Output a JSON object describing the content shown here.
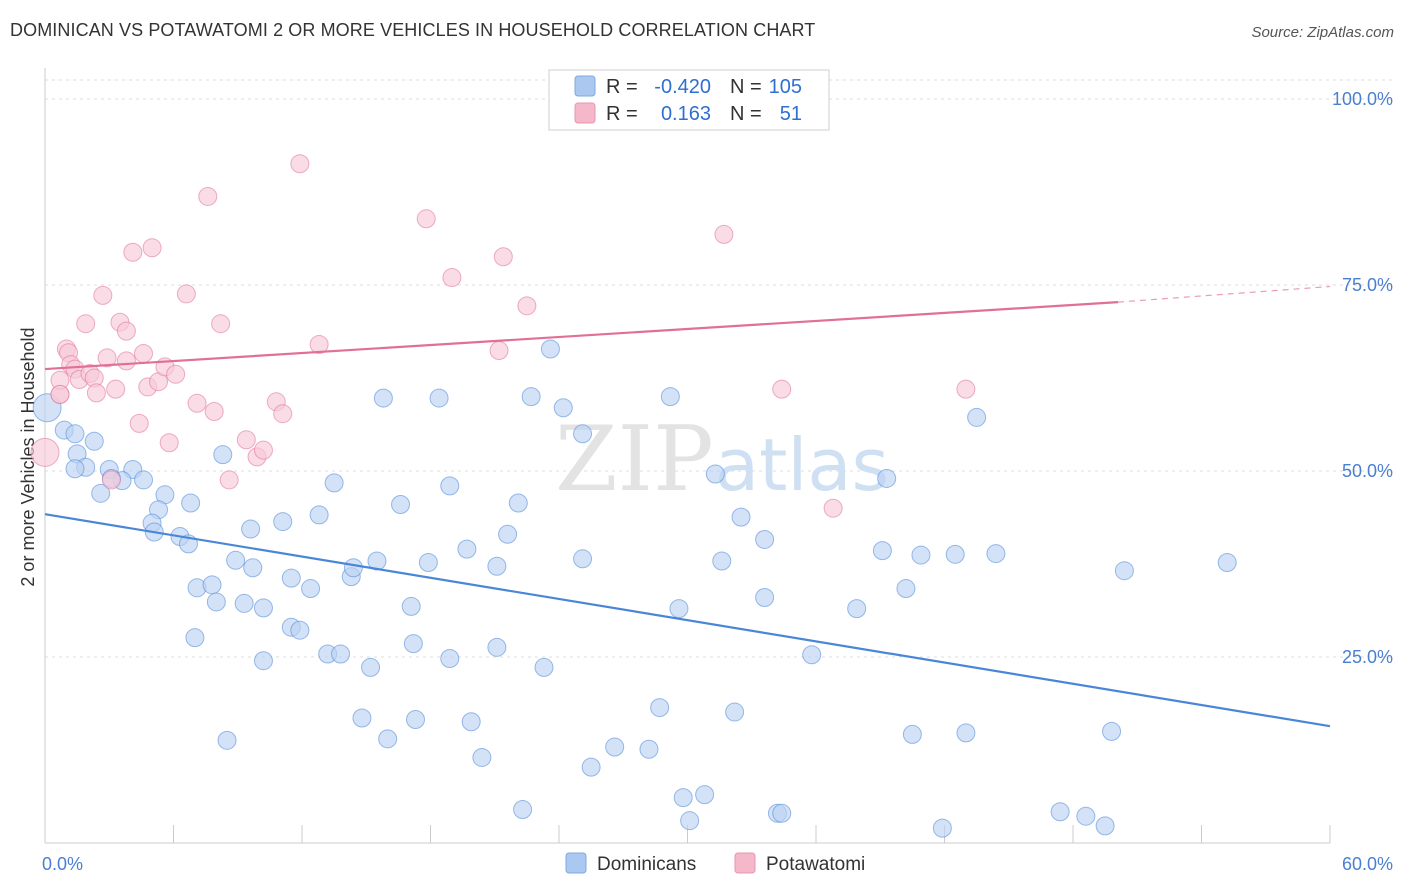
{
  "title": "DOMINICAN VS POTAWATOMI 2 OR MORE VEHICLES IN HOUSEHOLD CORRELATION CHART",
  "source": "Source: ZipAtlas.com",
  "watermark": {
    "part1": "ZIP",
    "part2": "atlas"
  },
  "legend": {
    "r_label": "R =",
    "n_label": "N =",
    "rows": [
      {
        "r": "-0.420",
        "n": "105",
        "color": "#aac8f0"
      },
      {
        "r": "0.163",
        "n": "51",
        "color": "#f5b8cb"
      }
    ]
  },
  "bottom_legend": [
    {
      "label": "Dominicans",
      "color": "#aac8f0"
    },
    {
      "label": "Potawatomi",
      "color": "#f5b8cb"
    }
  ],
  "chart_data": {
    "type": "scatter",
    "title": "DOMINICAN VS POTAWATOMI 2 OR MORE VEHICLES IN HOUSEHOLD CORRELATION CHART",
    "xlabel": "",
    "ylabel": "2 or more Vehicles in Household",
    "xlim": [
      0,
      60
    ],
    "ylim": [
      0,
      100
    ],
    "x_tick_labels": [
      "0.0%",
      "60.0%"
    ],
    "y_tick_labels": [
      "100.0%",
      "75.0%",
      "50.0%",
      "25.0%"
    ],
    "y_ticks": [
      100,
      75,
      50,
      25
    ],
    "grid": true,
    "series": [
      {
        "name": "Dominicans",
        "color": "#4a86d8",
        "fill": "#bcd3f3",
        "trend": {
          "x": [
            0,
            60
          ],
          "y": [
            44.2,
            15.7
          ]
        },
        "points": [
          [
            0.1,
            58.5
          ],
          [
            0.9,
            55.5
          ],
          [
            1.4,
            55.0
          ],
          [
            2.3,
            54.0
          ],
          [
            1.5,
            52.3
          ],
          [
            1.9,
            50.5
          ],
          [
            3.0,
            50.2
          ],
          [
            4.1,
            50.2
          ],
          [
            3.6,
            48.7
          ],
          [
            2.6,
            47.0
          ],
          [
            5.6,
            46.8
          ],
          [
            5.3,
            44.8
          ],
          [
            6.8,
            45.7
          ],
          [
            5.0,
            43.0
          ],
          [
            5.1,
            41.8
          ],
          [
            6.3,
            41.2
          ],
          [
            6.7,
            40.2
          ],
          [
            8.3,
            52.2
          ],
          [
            8.9,
            38.0
          ],
          [
            9.6,
            42.2
          ],
          [
            9.7,
            37.0
          ],
          [
            7.1,
            34.3
          ],
          [
            7.8,
            34.7
          ],
          [
            8.0,
            32.4
          ],
          [
            9.3,
            32.2
          ],
          [
            10.2,
            31.6
          ],
          [
            11.1,
            43.2
          ],
          [
            11.5,
            35.6
          ],
          [
            12.4,
            34.2
          ],
          [
            12.8,
            44.1
          ],
          [
            13.5,
            48.4
          ],
          [
            14.3,
            35.8
          ],
          [
            14.4,
            37.0
          ],
          [
            15.5,
            37.9
          ],
          [
            15.8,
            59.8
          ],
          [
            16.6,
            45.5
          ],
          [
            17.1,
            31.8
          ],
          [
            17.9,
            37.7
          ],
          [
            18.4,
            59.8
          ],
          [
            18.9,
            48.0
          ],
          [
            19.7,
            39.5
          ],
          [
            21.1,
            37.2
          ],
          [
            21.6,
            41.5
          ],
          [
            22.1,
            45.7
          ],
          [
            22.7,
            60.0
          ],
          [
            23.6,
            66.4
          ],
          [
            24.2,
            58.5
          ],
          [
            25.1,
            55.0
          ],
          [
            25.1,
            38.2
          ],
          [
            29.6,
            31.5
          ],
          [
            29.2,
            60.0
          ],
          [
            31.3,
            49.6
          ],
          [
            31.6,
            37.9
          ],
          [
            32.5,
            43.8
          ],
          [
            33.6,
            40.8
          ],
          [
            33.6,
            33.0
          ],
          [
            35.8,
            25.3
          ],
          [
            37.9,
            31.5
          ],
          [
            39.3,
            49.0
          ],
          [
            39.1,
            39.3
          ],
          [
            40.2,
            34.2
          ],
          [
            40.9,
            38.7
          ],
          [
            42.5,
            38.8
          ],
          [
            43.5,
            57.2
          ],
          [
            44.4,
            38.9
          ],
          [
            7.0,
            27.6
          ],
          [
            10.2,
            24.5
          ],
          [
            11.5,
            29.0
          ],
          [
            11.9,
            28.6
          ],
          [
            13.2,
            25.4
          ],
          [
            13.8,
            25.4
          ],
          [
            15.2,
            23.6
          ],
          [
            14.8,
            16.8
          ],
          [
            16.0,
            14.0
          ],
          [
            17.3,
            16.6
          ],
          [
            17.2,
            26.8
          ],
          [
            18.9,
            24.8
          ],
          [
            19.9,
            16.3
          ],
          [
            20.4,
            11.5
          ],
          [
            21.1,
            26.3
          ],
          [
            22.3,
            4.5
          ],
          [
            23.3,
            23.6
          ],
          [
            25.5,
            10.2
          ],
          [
            26.6,
            12.9
          ],
          [
            28.2,
            12.6
          ],
          [
            28.7,
            18.2
          ],
          [
            29.8,
            6.1
          ],
          [
            30.1,
            3.0
          ],
          [
            30.8,
            6.5
          ],
          [
            32.2,
            17.6
          ],
          [
            34.2,
            4.0
          ],
          [
            34.4,
            4.0
          ],
          [
            40.5,
            14.6
          ],
          [
            41.9,
            2.0
          ],
          [
            43.0,
            14.8
          ],
          [
            47.4,
            4.2
          ],
          [
            48.6,
            3.6
          ],
          [
            49.8,
            15.0
          ],
          [
            49.5,
            2.3
          ],
          [
            50.4,
            36.6
          ],
          [
            55.2,
            37.7
          ],
          [
            8.5,
            13.8
          ],
          [
            1.4,
            50.3
          ],
          [
            4.6,
            48.8
          ],
          [
            3.1,
            49.0
          ]
        ]
      },
      {
        "name": "Potawatomi",
        "color": "#e07098",
        "fill": "#f8cad9",
        "trend": {
          "x": [
            0,
            50.1
          ],
          "y": [
            63.7,
            72.7
          ]
        },
        "trend_dashed": {
          "x": [
            50.1,
            60
          ],
          "y": [
            72.7,
            74.8
          ]
        },
        "points": [
          [
            0.0,
            52.5
          ],
          [
            0.7,
            60.3
          ],
          [
            0.7,
            62.2
          ],
          [
            1.0,
            66.4
          ],
          [
            1.1,
            65.9
          ],
          [
            1.2,
            64.3
          ],
          [
            1.4,
            63.7
          ],
          [
            1.6,
            62.3
          ],
          [
            1.9,
            69.8
          ],
          [
            2.1,
            63.1
          ],
          [
            2.3,
            62.5
          ],
          [
            2.4,
            60.5
          ],
          [
            2.7,
            73.6
          ],
          [
            2.9,
            65.2
          ],
          [
            3.1,
            48.8
          ],
          [
            3.3,
            61.0
          ],
          [
            3.5,
            70.0
          ],
          [
            3.8,
            64.8
          ],
          [
            3.8,
            68.8
          ],
          [
            4.1,
            79.4
          ],
          [
            4.4,
            56.4
          ],
          [
            4.6,
            65.8
          ],
          [
            4.8,
            61.3
          ],
          [
            5.0,
            80.0
          ],
          [
            5.3,
            62.0
          ],
          [
            5.6,
            64.0
          ],
          [
            5.8,
            53.8
          ],
          [
            6.1,
            63.0
          ],
          [
            6.6,
            73.8
          ],
          [
            7.1,
            59.1
          ],
          [
            7.6,
            86.9
          ],
          [
            7.9,
            58.0
          ],
          [
            8.2,
            69.8
          ],
          [
            8.6,
            48.8
          ],
          [
            9.4,
            54.2
          ],
          [
            9.9,
            51.9
          ],
          [
            10.2,
            52.8
          ],
          [
            10.8,
            59.3
          ],
          [
            11.1,
            57.7
          ],
          [
            11.9,
            91.3
          ],
          [
            12.8,
            67.0
          ],
          [
            17.8,
            83.9
          ],
          [
            19.0,
            76.0
          ],
          [
            21.2,
            66.2
          ],
          [
            21.4,
            78.8
          ],
          [
            22.5,
            72.2
          ],
          [
            31.7,
            81.8
          ],
          [
            34.4,
            61.0
          ],
          [
            36.8,
            45.0
          ],
          [
            43.0,
            61.0
          ],
          [
            0.7,
            60.3
          ]
        ]
      }
    ]
  }
}
